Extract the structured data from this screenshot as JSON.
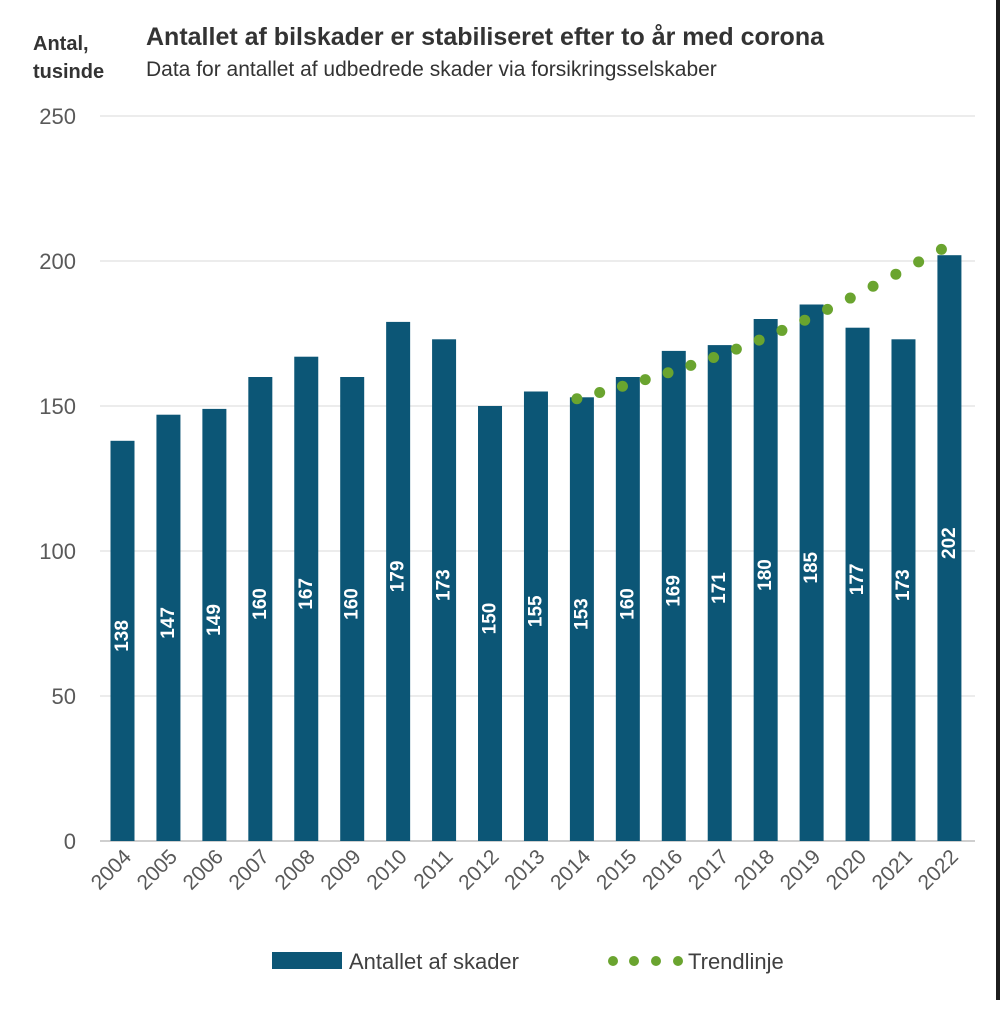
{
  "chart_data": {
    "type": "bar",
    "title": "Antallet af bilskader er stabiliseret efter to år med corona",
    "subtitle": "Data for antallet af udbedrede skader via forsikringsselskaber",
    "ylabel": [
      "Antal,",
      "tusinde"
    ],
    "categories": [
      "2004",
      "2005",
      "2006",
      "2007",
      "2008",
      "2009",
      "2010",
      "2011",
      "2012",
      "2013",
      "2014",
      "2015",
      "2016",
      "2017",
      "2018",
      "2019",
      "2020",
      "2021",
      "2022"
    ],
    "series": [
      {
        "name": "Antallet af skader",
        "type": "bar",
        "color": "#0c5676",
        "values": [
          138,
          147,
          149,
          160,
          167,
          160,
          179,
          173,
          150,
          155,
          153,
          160,
          169,
          171,
          180,
          185,
          177,
          173,
          202
        ]
      },
      {
        "name": "Trendlinje",
        "type": "dotted-line",
        "color": "#6aa42f",
        "x": [
          2014,
          2022
        ],
        "y": [
          152.5,
          204
        ]
      }
    ],
    "ylim": [
      0,
      250
    ],
    "yticks": [
      0,
      50,
      100,
      150,
      200,
      250
    ],
    "grid": true,
    "legend": "bottom"
  }
}
